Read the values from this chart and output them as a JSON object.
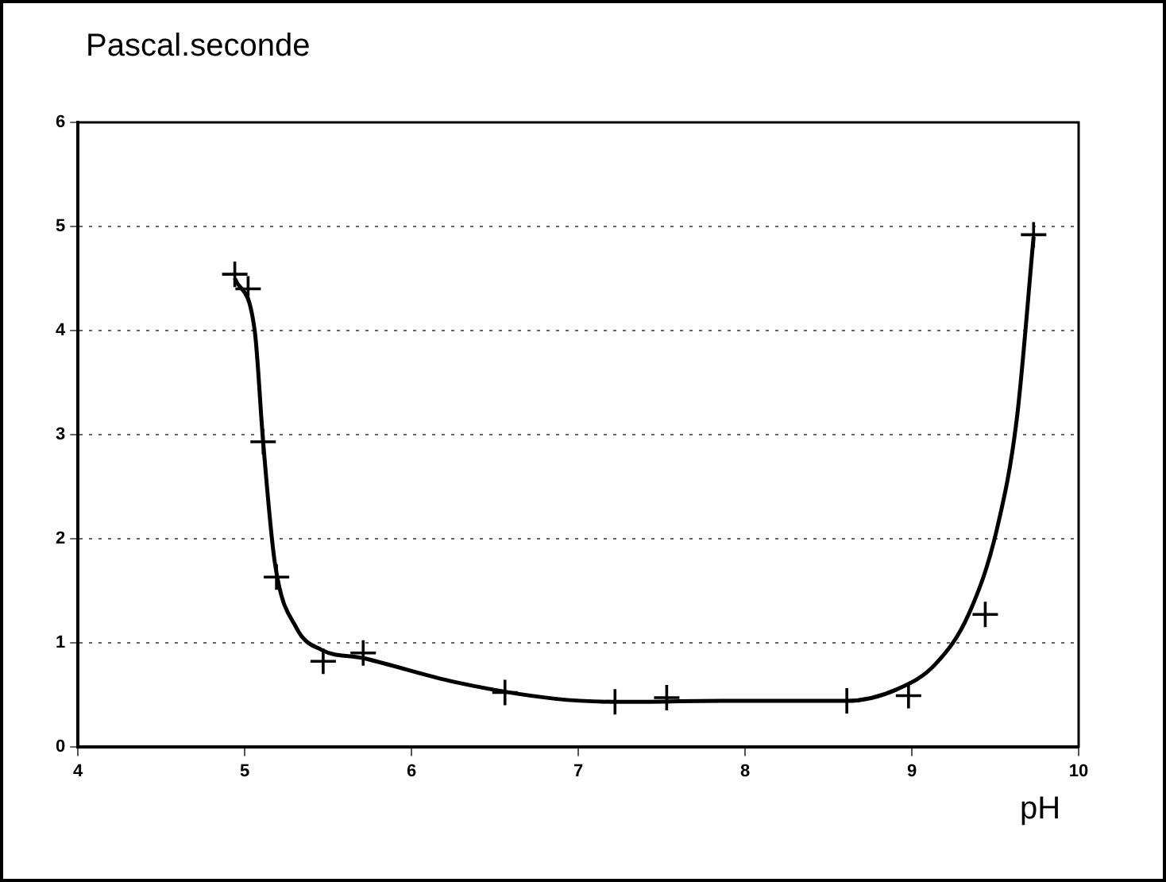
{
  "chart_data": {
    "type": "scatter",
    "ylabel": "Pascal.seconde",
    "xlabel": "pH",
    "xlim": [
      4,
      10
    ],
    "xticks": [
      4,
      5,
      6,
      7,
      8,
      9,
      10
    ],
    "ylim": [
      0,
      6
    ],
    "yticks": [
      0,
      1,
      2,
      3,
      4,
      5,
      6
    ],
    "grid": "y",
    "legend": false,
    "series": [
      {
        "marker": "cross",
        "color": "#000000",
        "x": [
          4.94,
          5.02,
          5.11,
          5.19,
          5.47,
          5.71,
          6.56,
          7.22,
          7.53,
          8.61,
          8.98,
          9.44,
          9.73
        ],
        "values": [
          4.54,
          4.4,
          2.93,
          1.63,
          0.82,
          0.9,
          0.52,
          0.43,
          0.47,
          0.44,
          0.49,
          1.27,
          4.92
        ]
      },
      {
        "type": "line",
        "marker": "none",
        "line_style": "solid",
        "color": "#000000",
        "x": [
          4.94,
          5.06,
          5.11,
          5.18,
          5.31,
          5.46,
          5.71,
          6.26,
          6.86,
          7.26,
          7.86,
          8.61,
          8.91,
          9.14,
          9.34,
          9.51,
          9.63,
          9.73
        ],
        "values": [
          4.5,
          3.99,
          2.93,
          1.77,
          1.14,
          0.93,
          0.85,
          0.62,
          0.46,
          0.43,
          0.44,
          0.44,
          0.55,
          0.79,
          1.27,
          2.09,
          3.16,
          4.9
        ]
      }
    ]
  }
}
